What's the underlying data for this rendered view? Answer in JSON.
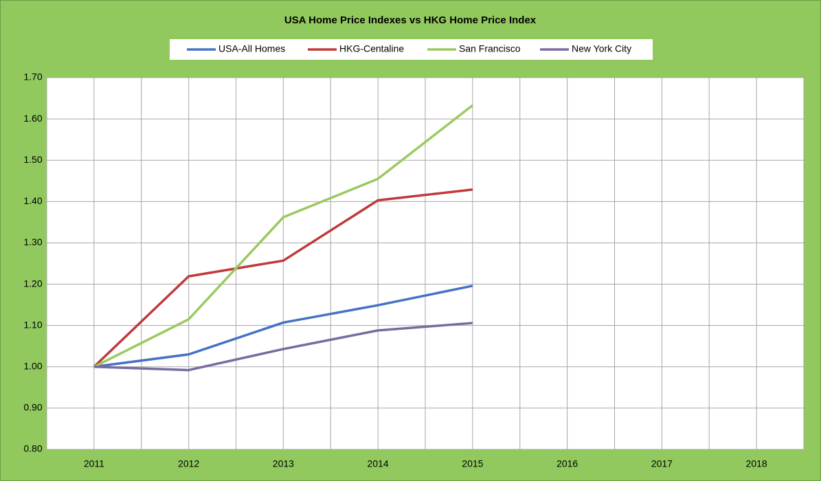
{
  "chart_data": {
    "type": "line",
    "title": "USA Home Price Indexes vs HKG Home Price Index",
    "categories": [
      "2011",
      "2012",
      "2013",
      "2014",
      "2015",
      "2016",
      "2017",
      "2018"
    ],
    "series": [
      {
        "name": "USA-All Homes",
        "color": "#4472c4",
        "values": [
          1.0,
          1.03,
          1.107,
          1.149,
          1.196,
          null,
          null,
          null
        ]
      },
      {
        "name": "HKG-Centaline",
        "color": "#c0393b",
        "values": [
          1.0,
          1.219,
          1.257,
          1.403,
          1.429,
          null,
          null,
          null
        ]
      },
      {
        "name": "San Francisco",
        "color": "#9bc95f",
        "values": [
          1.0,
          1.115,
          1.362,
          1.455,
          1.633,
          null,
          null,
          null
        ]
      },
      {
        "name": "New York City",
        "color": "#7a6aa0",
        "values": [
          1.0,
          0.992,
          1.043,
          1.088,
          1.106,
          null,
          null,
          null
        ]
      }
    ],
    "ylim": [
      0.8,
      1.7
    ],
    "yticks": [
      {
        "value": 0.8,
        "label": "0.80"
      },
      {
        "value": 0.9,
        "label": "0.90"
      },
      {
        "value": 1.0,
        "label": "1.00"
      },
      {
        "value": 1.1,
        "label": "1.10"
      },
      {
        "value": 1.2,
        "label": "1.20"
      },
      {
        "value": 1.3,
        "label": "1.30"
      },
      {
        "value": 1.4,
        "label": "1.40"
      },
      {
        "value": 1.5,
        "label": "1.50"
      },
      {
        "value": 1.6,
        "label": "1.60"
      },
      {
        "value": 1.7,
        "label": "1.70"
      }
    ],
    "grid": true,
    "legend": "top"
  }
}
